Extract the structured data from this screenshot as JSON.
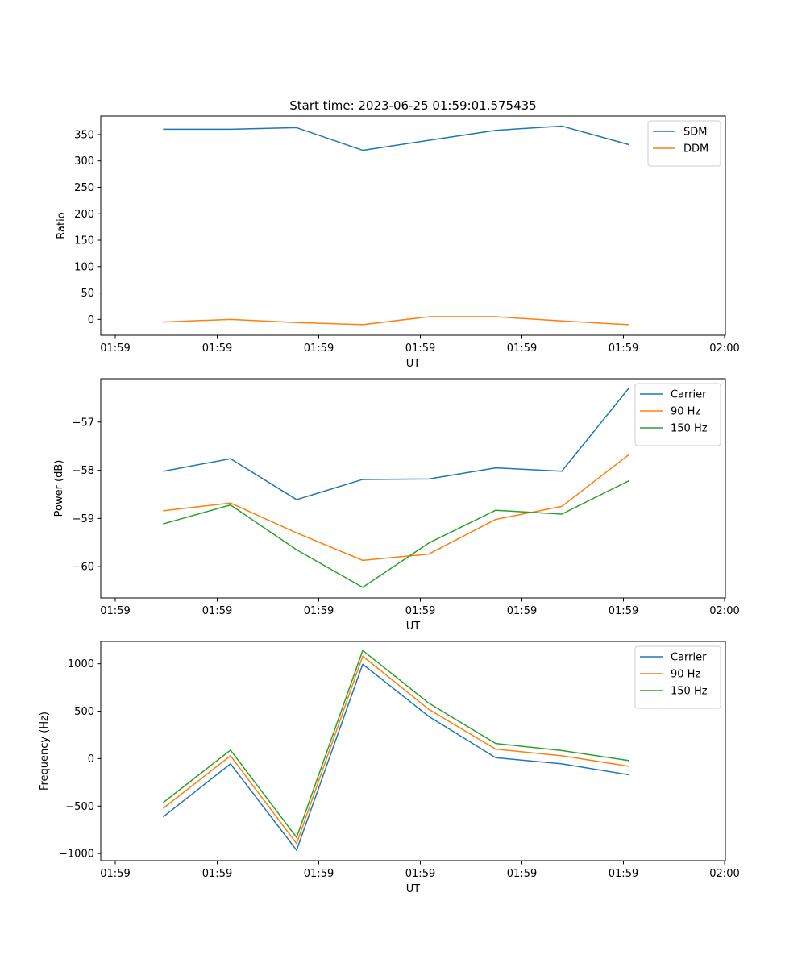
{
  "title": "Start time: 2023-06-25 01:59:01.575435",
  "chart_data": [
    {
      "type": "line",
      "xlabel": "UT",
      "ylabel": "Ratio",
      "x_tick_labels": [
        "01:59",
        "01:59",
        "01:59",
        "01:59",
        "01:59",
        "01:59",
        "02:00"
      ],
      "y_ticks": [
        0,
        50,
        100,
        150,
        200,
        250,
        300,
        350
      ],
      "ylim": [
        -30,
        385
      ],
      "legend_position": "upper-right",
      "grid": false,
      "series": [
        {
          "name": "SDM",
          "color": "#1f77b4",
          "values": [
            360,
            360,
            363,
            320,
            339,
            358,
            366,
            331
          ]
        },
        {
          "name": "DDM",
          "color": "#ff7f0e",
          "values": [
            -5,
            0,
            -6,
            -10,
            5,
            5,
            -3,
            -10
          ]
        }
      ]
    },
    {
      "type": "line",
      "xlabel": "UT",
      "ylabel": "Power (dB)",
      "x_tick_labels": [
        "01:59",
        "01:59",
        "01:59",
        "01:59",
        "01:59",
        "01:59",
        "02:00"
      ],
      "y_ticks": [
        -60,
        -59,
        -58,
        -57
      ],
      "ylim": [
        -60.65,
        -56.1
      ],
      "legend_position": "upper-right",
      "grid": false,
      "series": [
        {
          "name": "Carrier",
          "color": "#1f77b4",
          "values": [
            -58.02,
            -57.76,
            -58.61,
            -58.19,
            -58.18,
            -57.95,
            -58.02,
            -56.3
          ]
        },
        {
          "name": "90 Hz",
          "color": "#ff7f0e",
          "values": [
            -58.84,
            -58.68,
            -59.3,
            -59.87,
            -59.74,
            -59.02,
            -58.75,
            -57.68
          ]
        },
        {
          "name": "150 Hz",
          "color": "#2ca02c",
          "values": [
            -59.11,
            -58.72,
            -59.65,
            -60.43,
            -59.51,
            -58.83,
            -58.91,
            -58.22
          ]
        }
      ]
    },
    {
      "type": "line",
      "xlabel": "UT",
      "ylabel": "Frequency (Hz)",
      "x_tick_labels": [
        "01:59",
        "01:59",
        "01:59",
        "01:59",
        "01:59",
        "01:59",
        "02:00"
      ],
      "y_ticks": [
        -1000,
        -500,
        0,
        500,
        1000
      ],
      "ylim": [
        -1075,
        1235
      ],
      "legend_position": "upper-right",
      "grid": false,
      "series": [
        {
          "name": "Carrier",
          "color": "#1f77b4",
          "values": [
            -610,
            -55,
            -965,
            995,
            445,
            10,
            -55,
            -170
          ]
        },
        {
          "name": "90 Hz",
          "color": "#ff7f0e",
          "values": [
            -520,
            30,
            -895,
            1080,
            520,
            100,
            30,
            -80
          ]
        },
        {
          "name": "150 Hz",
          "color": "#2ca02c",
          "values": [
            -460,
            90,
            -830,
            1140,
            585,
            160,
            85,
            -20
          ]
        }
      ]
    }
  ]
}
